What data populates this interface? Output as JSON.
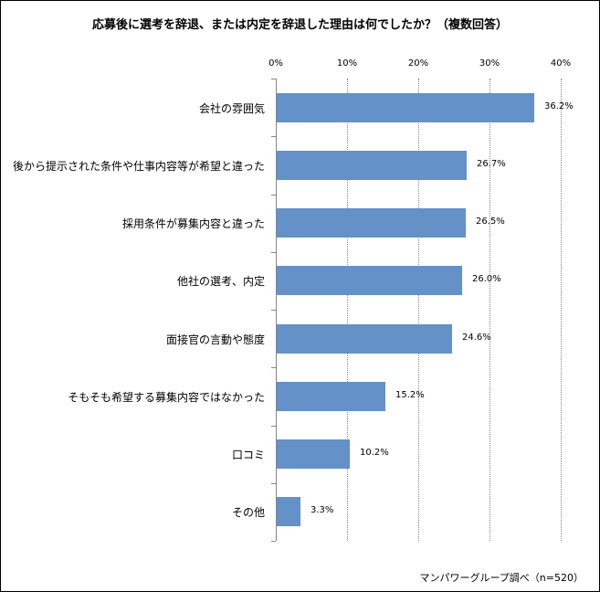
{
  "chart_data": {
    "type": "bar",
    "orientation": "horizontal",
    "title": "応募後に選考を辞退、または内定を辞退した理由は何でしたか？（複数回答）",
    "categories": [
      "会社の雰囲気",
      "後から提示された条件や仕事内容等が希望と違った",
      "採用条件が募集内容と違った",
      "他社の選考、内定",
      "面接官の言動や態度",
      "そもそも希望する募集内容ではなかった",
      "口コミ",
      "その他"
    ],
    "values": [
      36.2,
      26.7,
      26.5,
      26.0,
      24.6,
      15.2,
      10.2,
      3.3
    ],
    "value_labels": [
      "36.2%",
      "26.7%",
      "26.5%",
      "26.0%",
      "24.6%",
      "15.2%",
      "10.2%",
      "3.3%"
    ],
    "xlabel": "",
    "ylabel": "",
    "xlim": [
      0,
      40
    ],
    "x_ticks": [
      "0%",
      "10%",
      "20%",
      "30%",
      "40%"
    ],
    "grid": "vertical dotted",
    "legend": "none",
    "bar_color": "#6391c8",
    "annotation": "マンパワーグループ調べ（n=520）"
  },
  "title": "応募後に選考を辞退、または内定を辞退した理由は何でしたか？（複数回答）",
  "source": "マンパワーグループ調べ（n=520）"
}
